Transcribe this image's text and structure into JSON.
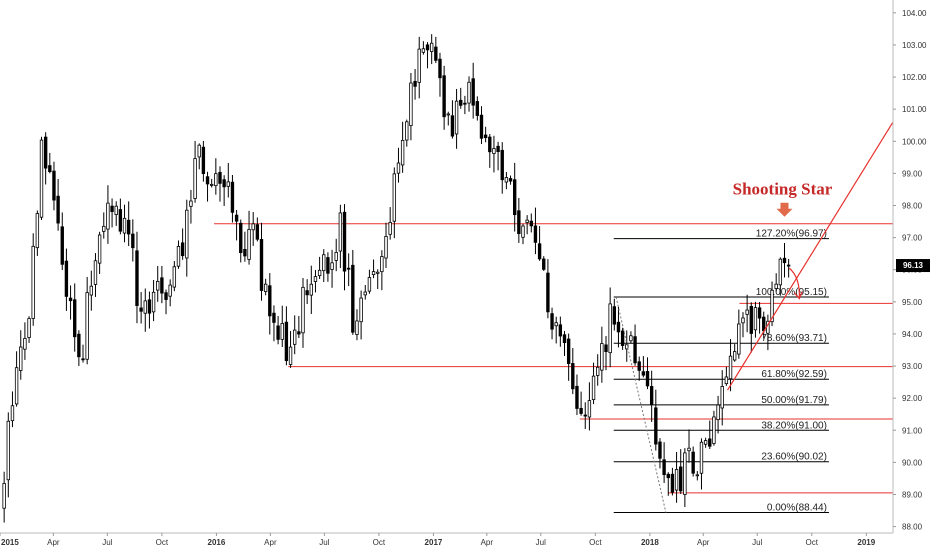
{
  "chart_data": {
    "type": "candlestick",
    "title": "",
    "annotation": "Shooting Star",
    "last_price": "96.13",
    "colors": {
      "up_candle": "#ffffff",
      "down_candle": "#000000",
      "candle_outline": "#000000",
      "horizontal_lines": "#e8322e",
      "trendline": "#e8322e",
      "fib_lines": "#000000",
      "annotation": "#c62828",
      "price_tag": "#000000"
    },
    "y_axis": {
      "side": "right",
      "min": 87.8,
      "max": 104.4,
      "ticks": [
        "88.00",
        "89.00",
        "90.00",
        "91.00",
        "92.00",
        "93.00",
        "94.00",
        "95.00",
        "96.00",
        "97.00",
        "98.00",
        "99.00",
        "100.00",
        "101.00",
        "102.00",
        "103.00",
        "104.00"
      ]
    },
    "x_axis": {
      "range": [
        "2015-01-01",
        "2019-02-15"
      ],
      "ticks": [
        {
          "label": "2015",
          "date": "2015-01-01",
          "bold": true
        },
        {
          "label": "Apr",
          "date": "2015-04-01"
        },
        {
          "label": "Jul",
          "date": "2015-07-01"
        },
        {
          "label": "Oct",
          "date": "2015-10-01"
        },
        {
          "label": "2016",
          "date": "2016-01-01",
          "bold": true
        },
        {
          "label": "Apr",
          "date": "2016-04-01"
        },
        {
          "label": "Jul",
          "date": "2016-07-01"
        },
        {
          "label": "Oct",
          "date": "2016-10-01"
        },
        {
          "label": "2017",
          "date": "2017-01-01",
          "bold": true
        },
        {
          "label": "Apr",
          "date": "2017-04-01"
        },
        {
          "label": "Jul",
          "date": "2017-07-01"
        },
        {
          "label": "Oct",
          "date": "2017-10-01"
        },
        {
          "label": "2018",
          "date": "2018-01-01",
          "bold": true
        },
        {
          "label": "Apr",
          "date": "2018-04-01"
        },
        {
          "label": "Jul",
          "date": "2018-07-01"
        },
        {
          "label": "Oct",
          "date": "2018-10-01"
        },
        {
          "label": "2019",
          "date": "2019-01-01",
          "bold": true
        }
      ]
    },
    "price_path": [
      [
        "2015-01-01",
        88.6
      ],
      [
        "2015-01-25",
        92.5
      ],
      [
        "2015-02-20",
        94.5
      ],
      [
        "2015-03-12",
        100.2
      ],
      [
        "2015-04-05",
        97.4
      ],
      [
        "2015-04-28",
        95.2
      ],
      [
        "2015-05-18",
        93.3
      ],
      [
        "2015-06-10",
        96.7
      ],
      [
        "2015-07-08",
        97.8
      ],
      [
        "2015-08-05",
        97.6
      ],
      [
        "2015-08-24",
        94.2
      ],
      [
        "2015-09-20",
        95.5
      ],
      [
        "2015-10-12",
        94.8
      ],
      [
        "2015-11-05",
        96.9
      ],
      [
        "2015-11-30",
        99.9
      ],
      [
        "2015-12-20",
        98.2
      ],
      [
        "2016-01-20",
        99.2
      ],
      [
        "2016-02-08",
        97.0
      ],
      [
        "2016-03-05",
        96.9
      ],
      [
        "2016-03-25",
        95.2
      ],
      [
        "2016-04-20",
        94.1
      ],
      [
        "2016-05-05",
        93.1
      ],
      [
        "2016-05-28",
        95.2
      ],
      [
        "2016-06-25",
        95.8
      ],
      [
        "2016-07-15",
        96.5
      ],
      [
        "2016-07-28",
        97.3
      ],
      [
        "2016-08-18",
        94.6
      ],
      [
        "2016-09-10",
        95.5
      ],
      [
        "2016-10-05",
        96.4
      ],
      [
        "2016-10-28",
        98.6
      ],
      [
        "2016-11-20",
        101.0
      ],
      [
        "2016-12-15",
        102.9
      ],
      [
        "2017-01-03",
        103.0
      ],
      [
        "2017-01-25",
        100.5
      ],
      [
        "2017-02-15",
        101.0
      ],
      [
        "2017-03-08",
        101.6
      ],
      [
        "2017-03-28",
        99.9
      ],
      [
        "2017-04-20",
        99.4
      ],
      [
        "2017-05-10",
        98.7
      ],
      [
        "2017-06-01",
        97.0
      ],
      [
        "2017-06-25",
        97.3
      ],
      [
        "2017-07-20",
        94.0
      ],
      [
        "2017-08-15",
        93.4
      ],
      [
        "2017-09-08",
        91.5
      ],
      [
        "2017-09-20",
        92.3
      ],
      [
        "2017-10-10",
        93.1
      ],
      [
        "2017-10-30",
        94.8
      ],
      [
        "2017-11-15",
        93.3
      ],
      [
        "2017-12-05",
        93.5
      ],
      [
        "2017-12-28",
        92.3
      ],
      [
        "2018-01-25",
        89.2
      ],
      [
        "2018-02-15",
        89.5
      ],
      [
        "2018-03-10",
        90.0
      ],
      [
        "2018-04-05",
        90.2
      ],
      [
        "2018-04-20",
        91.5
      ],
      [
        "2018-05-15",
        93.6
      ],
      [
        "2018-06-05",
        93.9
      ],
      [
        "2018-06-28",
        94.8
      ],
      [
        "2018-07-15",
        94.4
      ],
      [
        "2018-08-01",
        95.1
      ],
      [
        "2018-08-14",
        96.5
      ],
      [
        "2018-08-24",
        96.13
      ]
    ],
    "horizontal_levels": [
      {
        "value": 97.43,
        "from": "2015-12-28",
        "to": "2019-02-15"
      },
      {
        "value": 92.98,
        "from": "2016-05-01",
        "to": "2019-02-15"
      },
      {
        "value": 94.95,
        "from": "2018-06-01",
        "to": "2019-02-15"
      },
      {
        "value": 91.35,
        "from": "2017-09-05",
        "to": "2019-02-15"
      },
      {
        "value": 89.05,
        "from": "2018-02-01",
        "to": "2019-02-15"
      }
    ],
    "fibonacci": {
      "from": "2017-11-01",
      "to": "2018-10-30",
      "levels": [
        {
          "label": "127.20%(96.97)",
          "value": 96.97
        },
        {
          "label": "100.00%(95.15)",
          "value": 95.15
        },
        {
          "label": "78.60%(93.71)",
          "value": 93.71
        },
        {
          "label": "61.80%(92.59)",
          "value": 92.59
        },
        {
          "label": "50.00%(91.79)",
          "value": 91.79
        },
        {
          "label": "38.20%(91.00)",
          "value": 91.0
        },
        {
          "label": "23.60%(90.02)",
          "value": 90.02
        },
        {
          "label": "0.00%(88.44)",
          "value": 88.44
        }
      ]
    },
    "fib_anchor_line": [
      [
        "2017-11-05",
        95.15
      ],
      [
        "2018-01-28",
        88.44
      ]
    ],
    "trendline": [
      [
        "2018-05-12",
        92.25
      ],
      [
        "2019-02-15",
        100.6
      ]
    ],
    "pullback_arrow": [
      [
        "2018-08-24",
        96.05
      ],
      [
        "2018-09-10",
        95.1
      ]
    ],
    "marker_arrow": {
      "date": "2018-08-16",
      "value": 97.65
    }
  }
}
